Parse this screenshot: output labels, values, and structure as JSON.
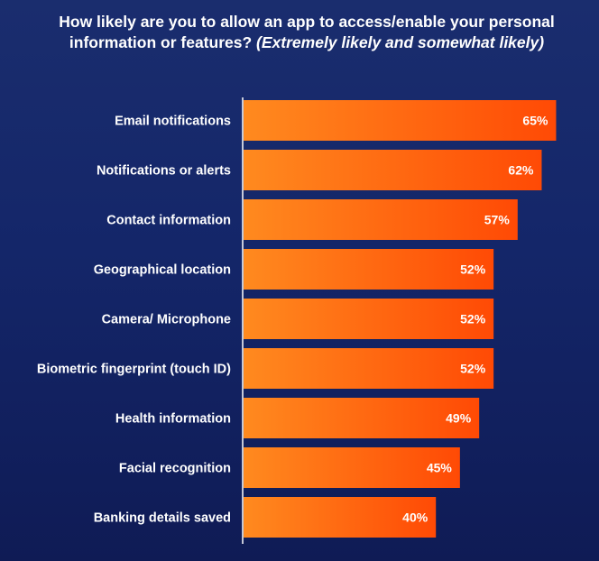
{
  "chart_data": {
    "type": "bar",
    "orientation": "horizontal",
    "title": "How likely are you to allow an app to access/enable your personal information or features?",
    "subtitle": "(Extremely likely and somewhat likely)",
    "categories": [
      "Email notifications",
      "Notifications or alerts",
      "Contact information",
      "Geographical location",
      "Camera/ Microphone",
      "Biometric fingerprint (touch ID)",
      "Health information",
      "Facial recognition",
      "Banking details saved"
    ],
    "values": [
      65,
      62,
      57,
      52,
      52,
      52,
      49,
      45,
      40
    ],
    "value_labels": [
      "65%",
      "62%",
      "57%",
      "52%",
      "52%",
      "52%",
      "49%",
      "45%",
      "40%"
    ],
    "xlim": [
      0,
      70
    ],
    "grid": false,
    "legend": "none",
    "colors": {
      "bar_start": "#ff8a1f",
      "bar_end": "#ff4a05",
      "text": "#ffffff",
      "axis": "#ffffff",
      "background_top": "#1a2d6e",
      "background_bottom": "#0f1b55"
    }
  }
}
